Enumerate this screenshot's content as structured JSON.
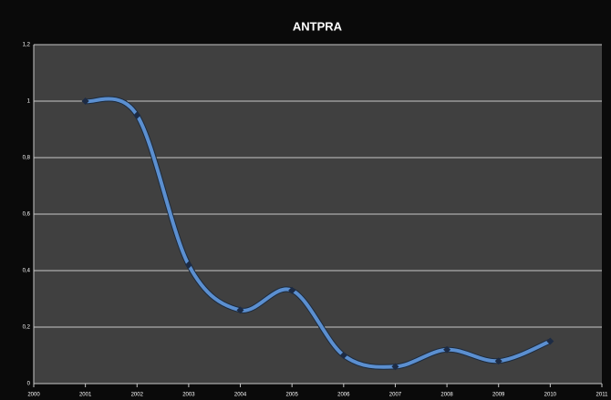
{
  "chart_data": {
    "type": "line",
    "title": "ANTPRA",
    "x": [
      2001,
      2002,
      2003,
      2004,
      2005,
      2006,
      2007,
      2008,
      2009,
      2010
    ],
    "values": [
      1.0,
      0.95,
      0.42,
      0.26,
      0.33,
      0.1,
      0.06,
      0.12,
      0.08,
      0.15
    ],
    "color": "#5b8fd0",
    "xlim": [
      2000,
      2011
    ],
    "xticks": [
      2000,
      2001,
      2002,
      2003,
      2004,
      2005,
      2006,
      2007,
      2008,
      2009,
      2010,
      2011
    ],
    "ylim": [
      0,
      1.2
    ],
    "yticks": [
      0,
      {
        "value": 0.2,
        "label": "0,2"
      },
      {
        "value": 0.4,
        "label": "0,4"
      },
      {
        "value": 0.6,
        "label": "0,6"
      },
      {
        "value": 0.8,
        "label": "0,8"
      },
      1,
      {
        "value": 1.2,
        "label": "1,2"
      }
    ],
    "grid": true,
    "smooth": true
  }
}
